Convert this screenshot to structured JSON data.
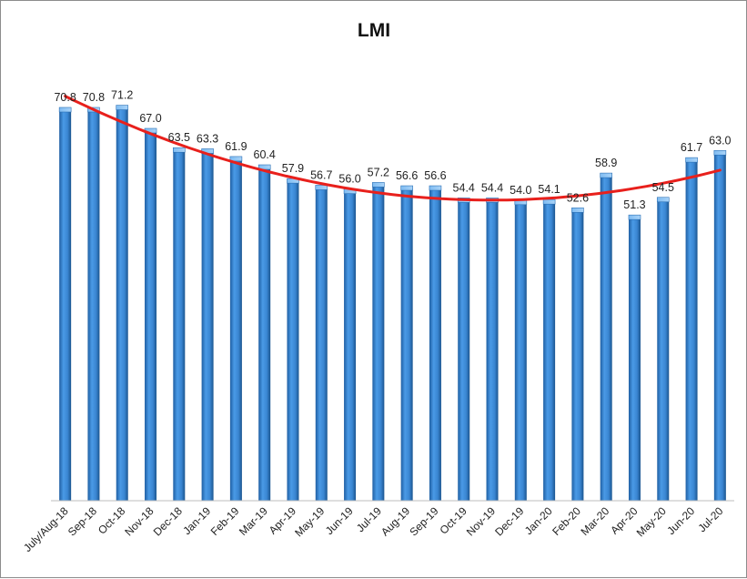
{
  "chart_data": {
    "type": "bar",
    "title": "LMI",
    "categories": [
      "July/Aug-18",
      "Sep-18",
      "Oct-18",
      "Nov-18",
      "Dec-18",
      "Jan-19",
      "Feb-19",
      "Mar-19",
      "Apr-19",
      "May-19",
      "Jun-19",
      "Jul-19",
      "Aug-19",
      "Sep-19",
      "Oct-19",
      "Nov-19",
      "Dec-19",
      "Jan-20",
      "Feb-20",
      "Mar-20",
      "Apr-20",
      "May-20",
      "Jun-20",
      "Jul-20"
    ],
    "values": [
      70.8,
      70.8,
      71.2,
      67.0,
      63.5,
      63.3,
      61.9,
      60.4,
      57.9,
      56.7,
      56.0,
      57.2,
      56.6,
      56.6,
      54.4,
      54.4,
      54.0,
      54.1,
      52.6,
      58.9,
      51.3,
      54.5,
      61.7,
      63.0
    ],
    "data_labels": [
      "70.8",
      "70.8",
      "71.2",
      "67.0",
      "63.5",
      "63.3",
      "61.9",
      "60.4",
      "57.9",
      "56.7",
      "56.0",
      "57.2",
      "56.6",
      "56.6",
      "54.4",
      "54.4",
      "54.0",
      "54.1",
      "52.6",
      "58.9",
      "51.3",
      "54.5",
      "61.7",
      "63.0"
    ],
    "ylim": [
      0,
      73
    ],
    "trendline": {
      "type": "polynomial",
      "color": "#e8201c"
    },
    "bar_color": "#3a86d2",
    "grid": false,
    "legend": "none",
    "y_axis_visible": false
  }
}
